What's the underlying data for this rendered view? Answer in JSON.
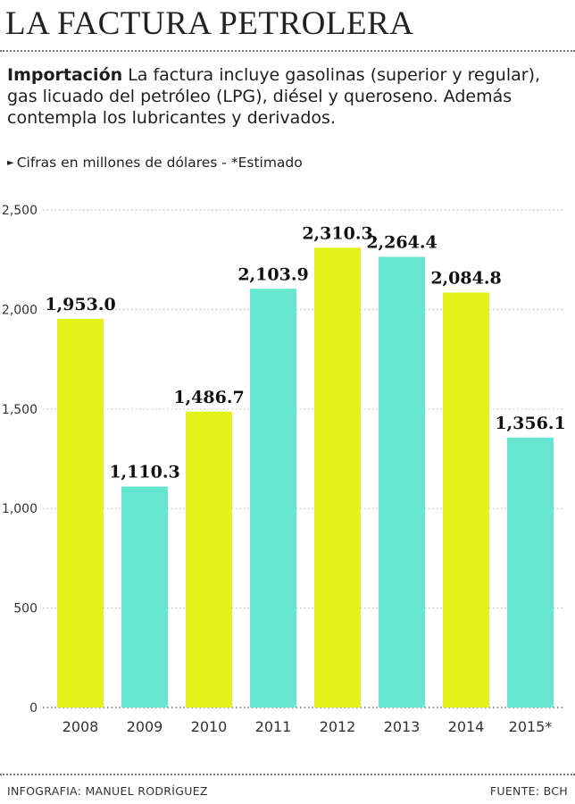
{
  "header": {
    "title": "LA FACTURA PETROLERA"
  },
  "intro": {
    "lead": "Importación",
    "text": " La factura  incluye gasolinas (superior y regular), gas licuado del petróleo (LPG), diésel y queroseno. Además contempla  los lubricantes y derivados."
  },
  "note": {
    "text": "Cifras en millones de dólares - *Estimado"
  },
  "colors": {
    "yellow": "#e3f218",
    "teal": "#67e6cf",
    "grid": "#bdbdbd"
  },
  "chart_data": {
    "type": "bar",
    "categories": [
      "2008",
      "2009",
      "2010",
      "2011",
      "2012",
      "2013",
      "2014",
      "2015*"
    ],
    "values": [
      1953.0,
      1110.3,
      1486.7,
      2103.9,
      2310.3,
      2264.4,
      2084.8,
      1356.1
    ],
    "value_labels": [
      "1,953.0",
      "1,110.3",
      "1,486.7",
      "2,103.9",
      "2,310.3",
      "2,264.4",
      "2,084.8",
      "1,356.1"
    ],
    "bar_colors": [
      "yellow",
      "teal",
      "yellow",
      "teal",
      "yellow",
      "teal",
      "yellow",
      "teal"
    ],
    "yticks": [
      0,
      500,
      1000,
      1500,
      2000,
      2500
    ],
    "ytick_labels": [
      "0",
      "500",
      "1,000",
      "1,500",
      "2,000",
      "2,500"
    ],
    "ylim": [
      0,
      2500
    ],
    "grid": true,
    "grid_style": "dotted-horizontal",
    "legend": "none",
    "title": "",
    "xlabel": "",
    "ylabel": ""
  },
  "footer": {
    "credit": "INFOGRAFIA: MANUEL RODRÍGUEZ",
    "source": "FUENTE: BCH"
  }
}
